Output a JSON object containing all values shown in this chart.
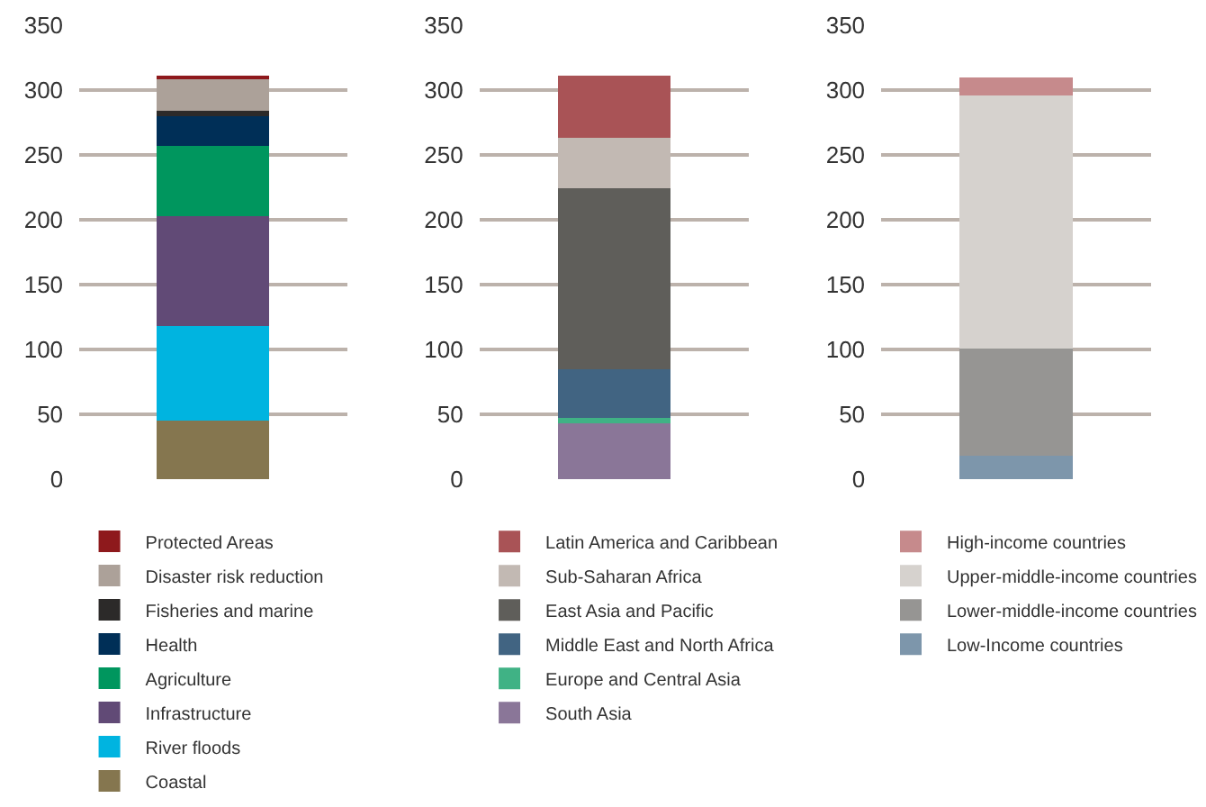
{
  "chart_data": [
    {
      "type": "bar",
      "stacked": true,
      "categories": [
        null
      ],
      "ylim": [
        0,
        350
      ],
      "yticks": [
        0,
        50,
        100,
        150,
        200,
        250,
        300,
        350
      ],
      "grid": "y",
      "legend": "bottom",
      "series": [
        {
          "name": "Coastal",
          "color": "#85764f",
          "values": [
            45
          ]
        },
        {
          "name": "River floods",
          "color": "#00b4e0",
          "values": [
            73
          ]
        },
        {
          "name": "Infrastructure",
          "color": "#614a76",
          "values": [
            85
          ]
        },
        {
          "name": "Agriculture",
          "color": "#00965e",
          "values": [
            54
          ]
        },
        {
          "name": "Health",
          "color": "#002f57",
          "values": [
            23
          ]
        },
        {
          "name": "Fisheries and marine",
          "color": "#2c2a29",
          "values": [
            4
          ]
        },
        {
          "name": "Disaster risk reduction",
          "color": "#aca199",
          "values": [
            24
          ]
        },
        {
          "name": "Protected Areas",
          "color": "#8e191c",
          "values": [
            3
          ]
        }
      ]
    },
    {
      "type": "bar",
      "stacked": true,
      "categories": [
        null
      ],
      "ylim": [
        0,
        350
      ],
      "yticks": [
        0,
        50,
        100,
        150,
        200,
        250,
        300,
        350
      ],
      "grid": "y",
      "legend": "bottom",
      "series": [
        {
          "name": "South Asia",
          "color": "#8a7698",
          "values": [
            43
          ]
        },
        {
          "name": "Europe and Central Asia",
          "color": "#40b285",
          "values": [
            4
          ]
        },
        {
          "name": "Middle East and North Africa",
          "color": "#416482",
          "values": [
            38
          ]
        },
        {
          "name": "East Asia and Pacific",
          "color": "#5f5e5a",
          "values": [
            139
          ]
        },
        {
          "name": "Sub-Saharan Africa",
          "color": "#c2b9b3",
          "values": [
            39
          ]
        },
        {
          "name": "Latin America and Caribbean",
          "color": "#a95356",
          "values": [
            48
          ]
        }
      ]
    },
    {
      "type": "bar",
      "stacked": true,
      "categories": [
        null
      ],
      "ylim": [
        0,
        350
      ],
      "yticks": [
        0,
        50,
        100,
        150,
        200,
        250,
        300,
        350
      ],
      "grid": "y",
      "legend": "bottom",
      "series": [
        {
          "name": "Low-Income countries",
          "color": "#7d96ab",
          "values": [
            18
          ]
        },
        {
          "name": "Lower-middle-income countries",
          "color": "#969593",
          "values": [
            83
          ]
        },
        {
          "name": "Upper-middle-income countries",
          "color": "#d6d2ce",
          "values": [
            195
          ]
        },
        {
          "name": "High-income countries",
          "color": "#c68a8c",
          "values": [
            14
          ]
        }
      ]
    }
  ]
}
